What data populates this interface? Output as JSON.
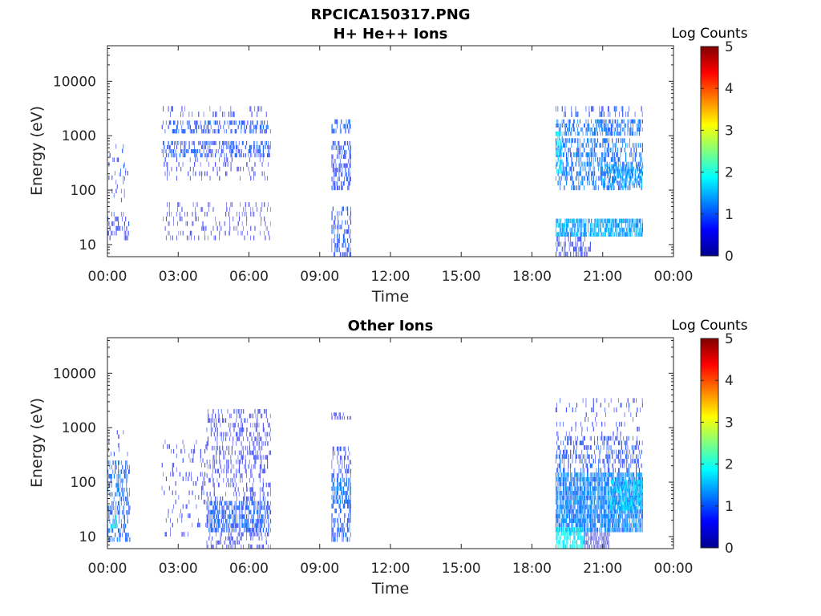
{
  "figure": {
    "main_title": "RPCICA150317.PNG"
  },
  "colors": {
    "dense_blue": "#00008f",
    "mid_blue": "#0000ff",
    "light_blue": "#1e6bff",
    "faint_blue": "#8c9bff",
    "cyan": "#00d0ff"
  },
  "chart_data": [
    {
      "type": "heatmap",
      "title": "H+ He++ Ions",
      "xlabel": "Time",
      "ylabel": "Energy (eV)",
      "x_ticks": [
        "00:00",
        "03:00",
        "06:00",
        "09:00",
        "12:00",
        "15:00",
        "18:00",
        "21:00",
        "00:00"
      ],
      "xlim_hours": [
        0,
        24
      ],
      "y_ticks": [
        10,
        100,
        1000,
        10000
      ],
      "y_tick_labels": [
        "10",
        "100",
        "1000",
        "10000"
      ],
      "ylim": [
        6,
        45000
      ],
      "yscale": "log",
      "colorbar": {
        "label": "Log Counts",
        "ticks": [
          "0",
          "1",
          "2",
          "3",
          "4",
          "5"
        ],
        "range": [
          0,
          5
        ],
        "colormap": "jet"
      },
      "grid": false,
      "data_intervals_hours": [
        [
          0.0,
          1.0
        ],
        [
          2.3,
          6.9
        ],
        [
          9.5,
          10.3
        ],
        [
          19.0,
          22.7
        ]
      ],
      "blocks": [
        {
          "t0": 0.0,
          "t1": 0.9,
          "e0": 12,
          "e1": 40,
          "density": 0.35,
          "level": 0.6
        },
        {
          "t0": 0.5,
          "t1": 0.8,
          "e0": 150,
          "e1": 300,
          "density": 0.3,
          "level": 0.8
        },
        {
          "t0": 0.0,
          "t1": 0.9,
          "e0": 60,
          "e1": 700,
          "density": 0.08,
          "level": 0.6
        },
        {
          "t0": 2.3,
          "t1": 6.9,
          "e0": 1100,
          "e1": 1900,
          "density": 0.45,
          "level": 0.85
        },
        {
          "t0": 2.3,
          "t1": 6.9,
          "e0": 400,
          "e1": 800,
          "density": 0.5,
          "level": 0.8
        },
        {
          "t0": 2.3,
          "t1": 6.9,
          "e0": 2200,
          "e1": 3500,
          "density": 0.12,
          "level": 0.5
        },
        {
          "t0": 2.3,
          "t1": 6.9,
          "e0": 150,
          "e1": 400,
          "density": 0.15,
          "level": 0.4
        },
        {
          "t0": 2.3,
          "t1": 6.9,
          "e0": 12,
          "e1": 60,
          "density": 0.18,
          "level": 0.35
        },
        {
          "t0": 9.5,
          "t1": 10.3,
          "e0": 1100,
          "e1": 2000,
          "density": 0.5,
          "level": 0.9
        },
        {
          "t0": 9.5,
          "t1": 10.3,
          "e0": 100,
          "e1": 800,
          "density": 0.45,
          "level": 0.75
        },
        {
          "t0": 9.5,
          "t1": 10.3,
          "e0": 6,
          "e1": 50,
          "density": 0.4,
          "level": 0.8
        },
        {
          "t0": 19.0,
          "t1": 22.7,
          "e0": 1000,
          "e1": 2000,
          "density": 0.55,
          "level": 1.1
        },
        {
          "t0": 19.0,
          "t1": 22.7,
          "e0": 100,
          "e1": 900,
          "density": 0.45,
          "level": 1.1
        },
        {
          "t0": 19.0,
          "t1": 22.7,
          "e0": 14,
          "e1": 30,
          "density": 0.85,
          "level": 1.4
        },
        {
          "t0": 19.0,
          "t1": 20.5,
          "e0": 6,
          "e1": 14,
          "density": 0.4,
          "level": 0.6
        },
        {
          "t0": 19.0,
          "t1": 19.3,
          "e0": 200,
          "e1": 1200,
          "density": 0.6,
          "level": 1.7
        },
        {
          "t0": 21.0,
          "t1": 22.7,
          "e0": 110,
          "e1": 300,
          "density": 0.55,
          "level": 1.4
        },
        {
          "t0": 19.0,
          "t1": 22.7,
          "e0": 2200,
          "e1": 3500,
          "density": 0.3,
          "level": 0.7
        }
      ]
    },
    {
      "type": "heatmap",
      "title": "Other Ions",
      "xlabel": "Time",
      "ylabel": "Energy (eV)",
      "x_ticks": [
        "00:00",
        "03:00",
        "06:00",
        "09:00",
        "12:00",
        "15:00",
        "18:00",
        "21:00",
        "00:00"
      ],
      "xlim_hours": [
        0,
        24
      ],
      "y_ticks": [
        10,
        100,
        1000,
        10000
      ],
      "y_tick_labels": [
        "10",
        "100",
        "1000",
        "10000"
      ],
      "ylim": [
        6,
        45000
      ],
      "yscale": "log",
      "colorbar": {
        "label": "Log Counts",
        "ticks": [
          "0",
          "1",
          "2",
          "3",
          "4",
          "5"
        ],
        "range": [
          0,
          5
        ],
        "colormap": "jet"
      },
      "grid": false,
      "data_intervals_hours": [
        [
          0.0,
          1.0
        ],
        [
          2.3,
          6.9
        ],
        [
          9.5,
          10.3
        ],
        [
          19.0,
          22.7
        ]
      ],
      "blocks": [
        {
          "t0": 0.0,
          "t1": 0.95,
          "e0": 8,
          "e1": 250,
          "density": 0.45,
          "level": 1.0
        },
        {
          "t0": 0.1,
          "t1": 0.4,
          "e0": 14,
          "e1": 25,
          "density": 0.6,
          "level": 1.9
        },
        {
          "t0": 0.0,
          "t1": 0.9,
          "e0": 300,
          "e1": 900,
          "density": 0.1,
          "level": 0.5
        },
        {
          "t0": 2.3,
          "t1": 4.2,
          "e0": 10,
          "e1": 600,
          "density": 0.12,
          "level": 0.5
        },
        {
          "t0": 4.2,
          "t1": 6.9,
          "e0": 12,
          "e1": 45,
          "density": 0.7,
          "level": 0.9
        },
        {
          "t0": 4.2,
          "t1": 6.9,
          "e0": 45,
          "e1": 2200,
          "density": 0.3,
          "level": 0.5
        },
        {
          "t0": 4.2,
          "t1": 6.9,
          "e0": 6,
          "e1": 12,
          "density": 0.35,
          "level": 0.5
        },
        {
          "t0": 9.5,
          "t1": 10.3,
          "e0": 40,
          "e1": 120,
          "density": 0.7,
          "level": 1.1
        },
        {
          "t0": 9.5,
          "t1": 10.3,
          "e0": 8,
          "e1": 40,
          "density": 0.5,
          "level": 0.9
        },
        {
          "t0": 9.5,
          "t1": 10.3,
          "e0": 120,
          "e1": 450,
          "density": 0.4,
          "level": 0.6
        },
        {
          "t0": 9.5,
          "t1": 10.3,
          "e0": 1400,
          "e1": 1900,
          "density": 0.35,
          "level": 0.5
        },
        {
          "t0": 19.0,
          "t1": 22.7,
          "e0": 12,
          "e1": 150,
          "density": 0.9,
          "level": 1.2
        },
        {
          "t0": 19.0,
          "t1": 20.2,
          "e0": 6,
          "e1": 15,
          "density": 0.8,
          "level": 1.9
        },
        {
          "t0": 20.2,
          "t1": 21.3,
          "e0": 6,
          "e1": 12,
          "density": 0.85,
          "level": 0.2
        },
        {
          "t0": 19.0,
          "t1": 22.7,
          "e0": 150,
          "e1": 700,
          "density": 0.4,
          "level": 0.8
        },
        {
          "t0": 19.0,
          "t1": 22.7,
          "e0": 700,
          "e1": 3500,
          "density": 0.12,
          "level": 0.6
        },
        {
          "t0": 21.3,
          "t1": 22.7,
          "e0": 30,
          "e1": 110,
          "density": 0.7,
          "level": 1.6
        }
      ]
    }
  ]
}
